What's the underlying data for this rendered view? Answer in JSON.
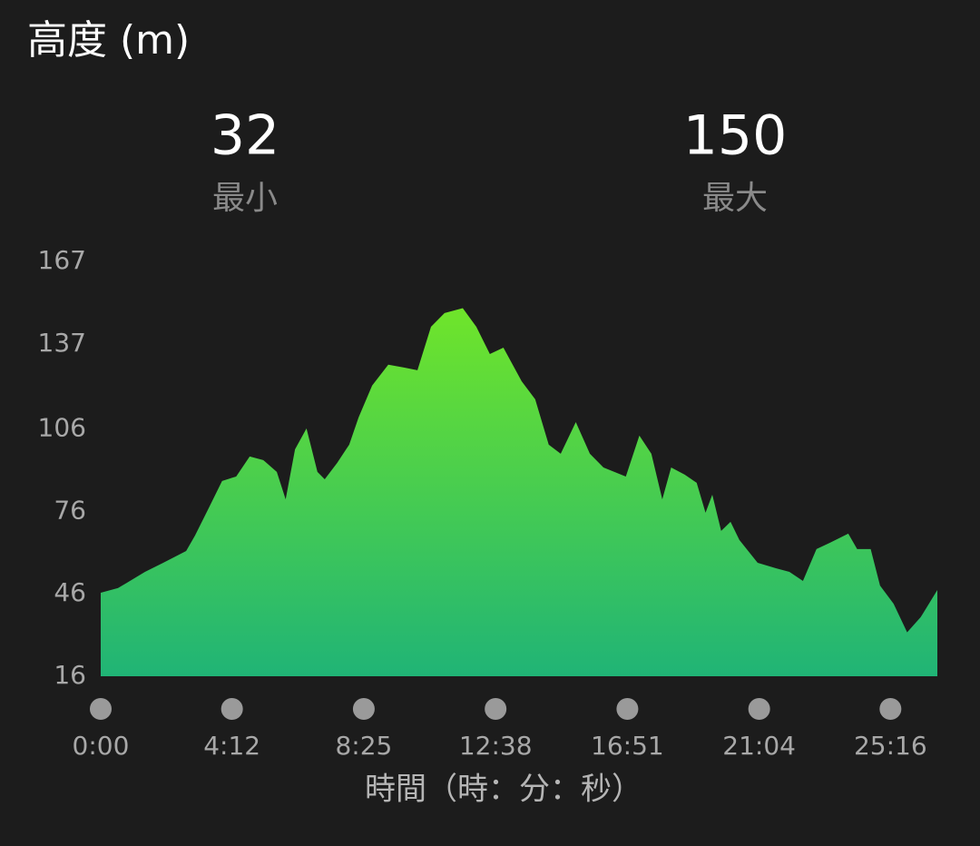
{
  "chart_data": {
    "type": "area",
    "title": "高度 (m)",
    "summary": [
      {
        "value": 32,
        "label": "最小"
      },
      {
        "value": 150,
        "label": "最大"
      }
    ],
    "x_label": "時間（時：分：秒）",
    "x": [
      0,
      33,
      50,
      85,
      120,
      164,
      181,
      207,
      233,
      260,
      286,
      312,
      338,
      355,
      373,
      395,
      416,
      430,
      454,
      477,
      495,
      521,
      552,
      582,
      608,
      634,
      660,
      695,
      721,
      747,
      773,
      808,
      834,
      860,
      883,
      912,
      939,
      965,
      1008,
      1034,
      1057,
      1078,
      1095,
      1121,
      1144,
      1161,
      1174,
      1191,
      1209,
      1226,
      1261,
      1296,
      1322,
      1348,
      1374,
      1400,
      1435,
      1452,
      1478,
      1496,
      1522,
      1548,
      1574,
      1606
    ],
    "values": [
      46.4,
      48.1,
      50.0,
      54.0,
      57.3,
      61.6,
      67.2,
      77.1,
      87.1,
      88.7,
      96.0,
      94.7,
      90.4,
      80.4,
      98.6,
      106.2,
      90.4,
      87.7,
      93.7,
      100.3,
      110.2,
      121.8,
      129.4,
      128.4,
      127.4,
      143.2,
      148.2,
      150.0,
      143.2,
      133.3,
      135.6,
      123.4,
      116.8,
      100.3,
      97.0,
      108.5,
      97.0,
      92.0,
      88.7,
      103.6,
      97.0,
      80.4,
      92.0,
      89.4,
      86.4,
      75.5,
      82.1,
      68.9,
      72.2,
      65.6,
      57.3,
      55.3,
      54.0,
      50.7,
      62.3,
      64.6,
      67.9,
      62.3,
      62.3,
      49.0,
      42.4,
      32.0,
      37.5,
      47.4
    ],
    "gradient": [
      "#6fe52a",
      "#20b476"
    ],
    "xlim": [
      0,
      1606
    ],
    "xticks": [
      {
        "value": 0,
        "label": "0:00"
      },
      {
        "value": 252,
        "label": "4:12"
      },
      {
        "value": 505,
        "label": "8:25"
      },
      {
        "value": 758,
        "label": "12:38"
      },
      {
        "value": 1011,
        "label": "16:51"
      },
      {
        "value": 1264,
        "label": "21:04"
      },
      {
        "value": 1516,
        "label": "25:16"
      }
    ],
    "ylim": [
      16,
      167
    ],
    "yticks": [
      16,
      46,
      76,
      106,
      137,
      167
    ]
  }
}
